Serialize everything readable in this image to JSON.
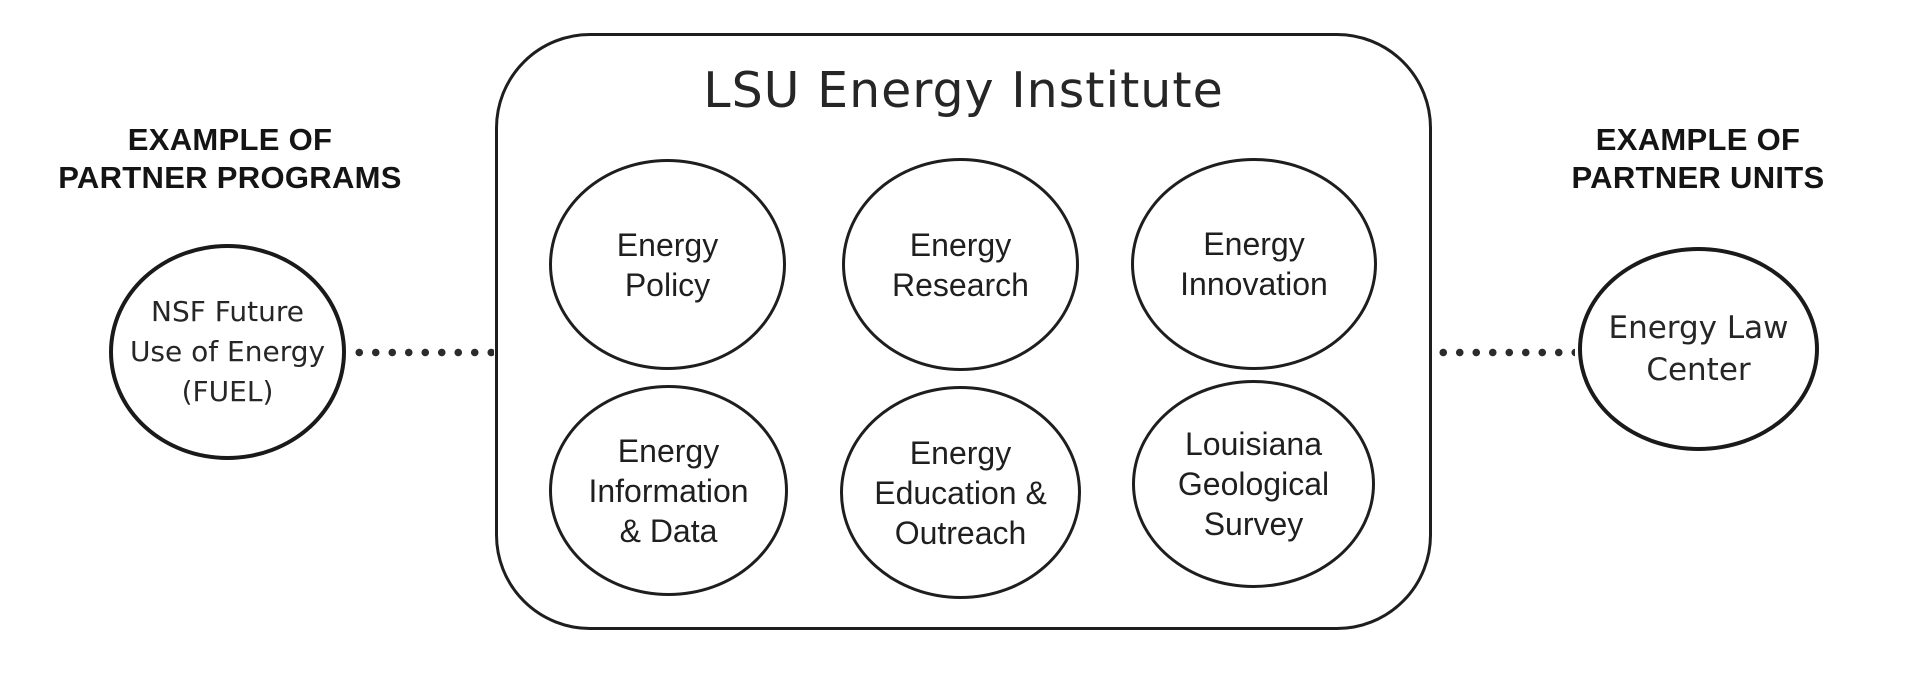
{
  "colors": {
    "ink": "#1f1f1f",
    "stroke": "#1e1e1e",
    "background": "#ffffff"
  },
  "left_panel": {
    "heading": "EXAMPLE OF\nPARTNER PROGRAMS",
    "partner_label": "NSF Future\nUse of Energy\n(FUEL)"
  },
  "institute": {
    "title": "LSU Energy Institute",
    "units": [
      {
        "label": "Energy\nPolicy"
      },
      {
        "label": "Energy\nResearch"
      },
      {
        "label": "Energy\nInnovation"
      },
      {
        "label": "Energy\nInformation\n& Data"
      },
      {
        "label": "Energy\nEducation &\nOutreach"
      },
      {
        "label": "Louisiana\nGeological\nSurvey"
      }
    ]
  },
  "right_panel": {
    "heading": "EXAMPLE OF\nPARTNER UNITS",
    "partner_label": "Energy Law\nCenter"
  }
}
